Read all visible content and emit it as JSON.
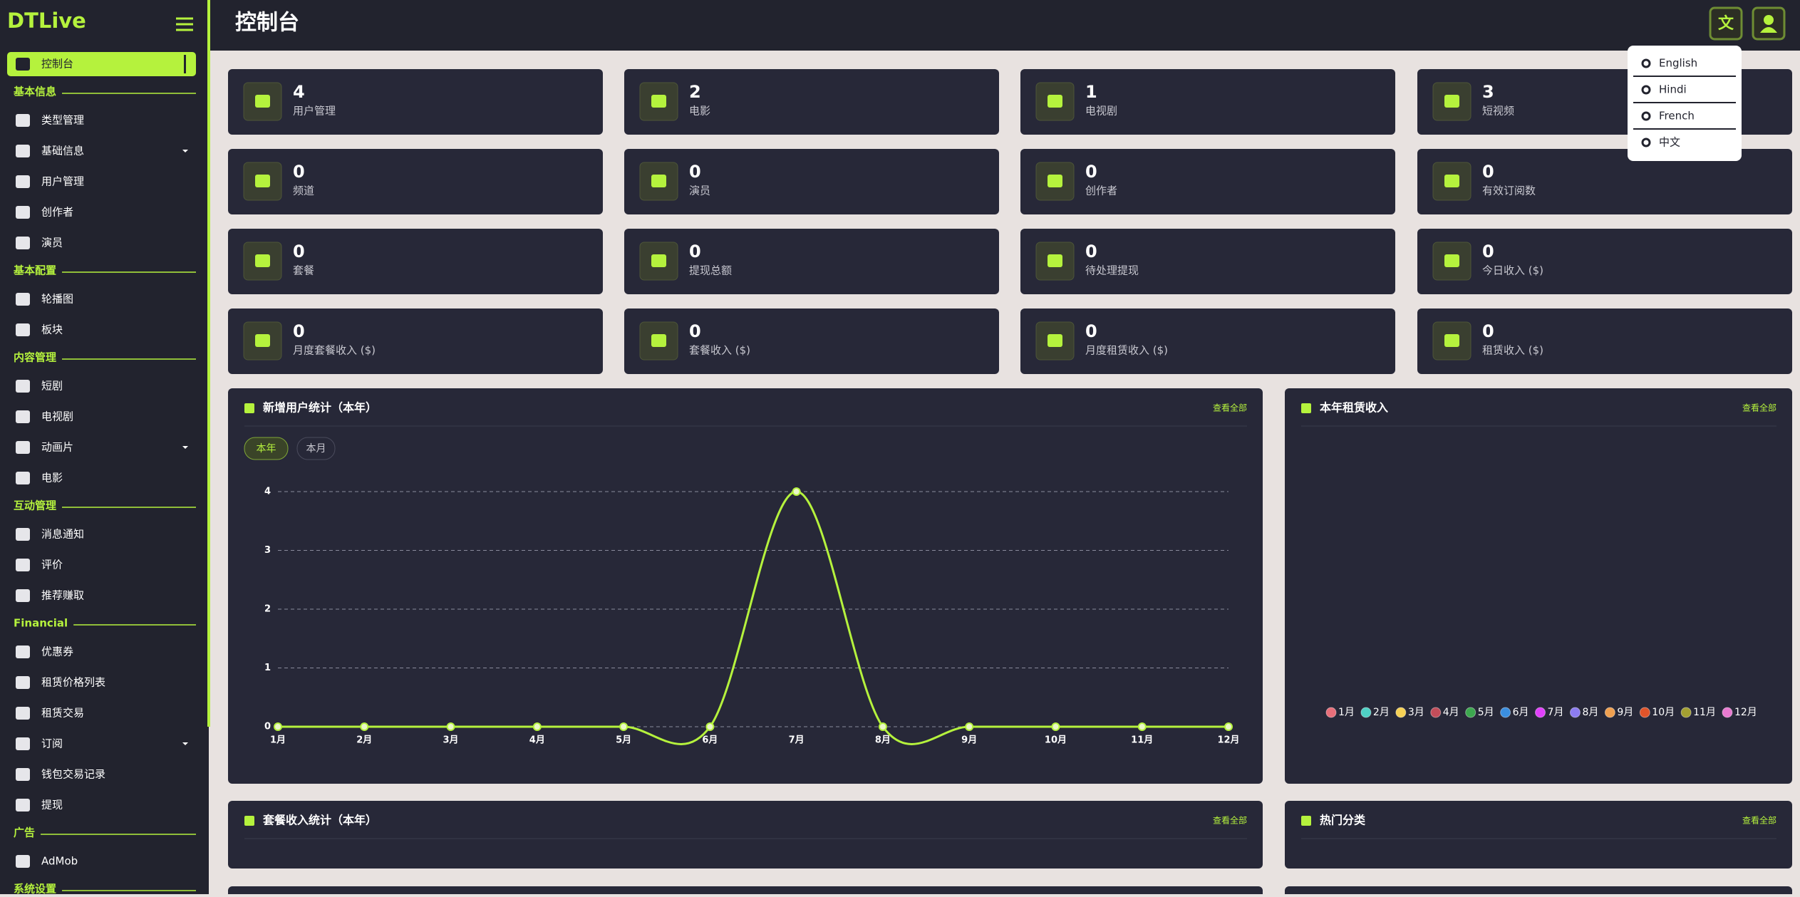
{
  "brand": "DTLive",
  "page_title": "控制台",
  "sidebar": [
    {
      "label": "控制台",
      "active": true
    },
    {
      "section": "基本信息"
    },
    {
      "label": "类型管理"
    },
    {
      "label": "基础信息",
      "expandable": true
    },
    {
      "label": "用户管理"
    },
    {
      "label": "创作者"
    },
    {
      "label": "演员"
    },
    {
      "section": "基本配置"
    },
    {
      "label": "轮播图"
    },
    {
      "label": "板块"
    },
    {
      "section": "内容管理"
    },
    {
      "label": "短剧"
    },
    {
      "label": "电视剧"
    },
    {
      "label": "动画片",
      "expandable": true
    },
    {
      "label": "电影"
    },
    {
      "section": "互动管理"
    },
    {
      "label": "消息通知"
    },
    {
      "label": "评价"
    },
    {
      "label": "推荐赚取"
    },
    {
      "section": "Financial"
    },
    {
      "label": "优惠券"
    },
    {
      "label": "租赁价格列表"
    },
    {
      "label": "租赁交易"
    },
    {
      "label": "订阅",
      "expandable": true
    },
    {
      "label": "钱包交易记录"
    },
    {
      "label": "提现"
    },
    {
      "section": "广告"
    },
    {
      "label": "AdMob"
    },
    {
      "section": "系统设置"
    }
  ],
  "languages": [
    "English",
    "Hindi",
    "French",
    "中文"
  ],
  "stats": [
    {
      "value": 4,
      "label": "用户管理"
    },
    {
      "value": 2,
      "label": "电影"
    },
    {
      "value": 1,
      "label": "电视剧"
    },
    {
      "value": 3,
      "label": "短视频"
    },
    {
      "value": 0,
      "label": "频道"
    },
    {
      "value": 0,
      "label": "演员"
    },
    {
      "value": 0,
      "label": "创作者"
    },
    {
      "value": 0,
      "label": "有效订阅数"
    },
    {
      "value": 0,
      "label": "套餐"
    },
    {
      "value": 0,
      "label": "提现总额"
    },
    {
      "value": 0,
      "label": "待处理提现"
    },
    {
      "value": 0,
      "label": "今日收入 ($)"
    },
    {
      "value": 0,
      "label": "月度套餐收入 ($)"
    },
    {
      "value": 0,
      "label": "套餐收入 ($)"
    },
    {
      "value": 0,
      "label": "月度租赁收入 ($)"
    },
    {
      "value": 0,
      "label": "租赁收入 ($)"
    }
  ],
  "user_chart": {
    "type": "line",
    "title": "新增用户统计（本年）",
    "link": "查看全部",
    "tabs": [
      "本年",
      "本月"
    ],
    "active_tab": 0,
    "categories": [
      "1月",
      "2月",
      "3月",
      "4月",
      "5月",
      "6月",
      "7月",
      "8月",
      "9月",
      "10月",
      "11月",
      "12月"
    ],
    "values": [
      0,
      0,
      0,
      0,
      0,
      0,
      4,
      0,
      0,
      0,
      0,
      0
    ],
    "ylim": [
      0,
      4
    ],
    "yticks": [
      0,
      1,
      2,
      3,
      4
    ],
    "grid": true,
    "color": "#b5f23d"
  },
  "rent_chart": {
    "type": "pie",
    "title": "本年租赁收入",
    "link": "查看全部",
    "legend": [
      {
        "name": "1月",
        "color": "#e86f7a"
      },
      {
        "name": "2月",
        "color": "#4fd1c5"
      },
      {
        "name": "3月",
        "color": "#f6d155"
      },
      {
        "name": "4月",
        "color": "#c24d5a"
      },
      {
        "name": "5月",
        "color": "#3da84f"
      },
      {
        "name": "6月",
        "color": "#3b8fe0"
      },
      {
        "name": "7月",
        "color": "#e040fb"
      },
      {
        "name": "8月",
        "color": "#8c7cf0"
      },
      {
        "name": "9月",
        "color": "#f0a050"
      },
      {
        "name": "10月",
        "color": "#e0542a"
      },
      {
        "name": "11月",
        "color": "#a3a032"
      },
      {
        "name": "12月",
        "color": "#e87ad0"
      }
    ]
  },
  "bottom_panels": [
    {
      "title": "套餐收入统计（本年）",
      "link": "查看全部"
    },
    {
      "title": "热门分类",
      "link": "查看全部"
    }
  ]
}
